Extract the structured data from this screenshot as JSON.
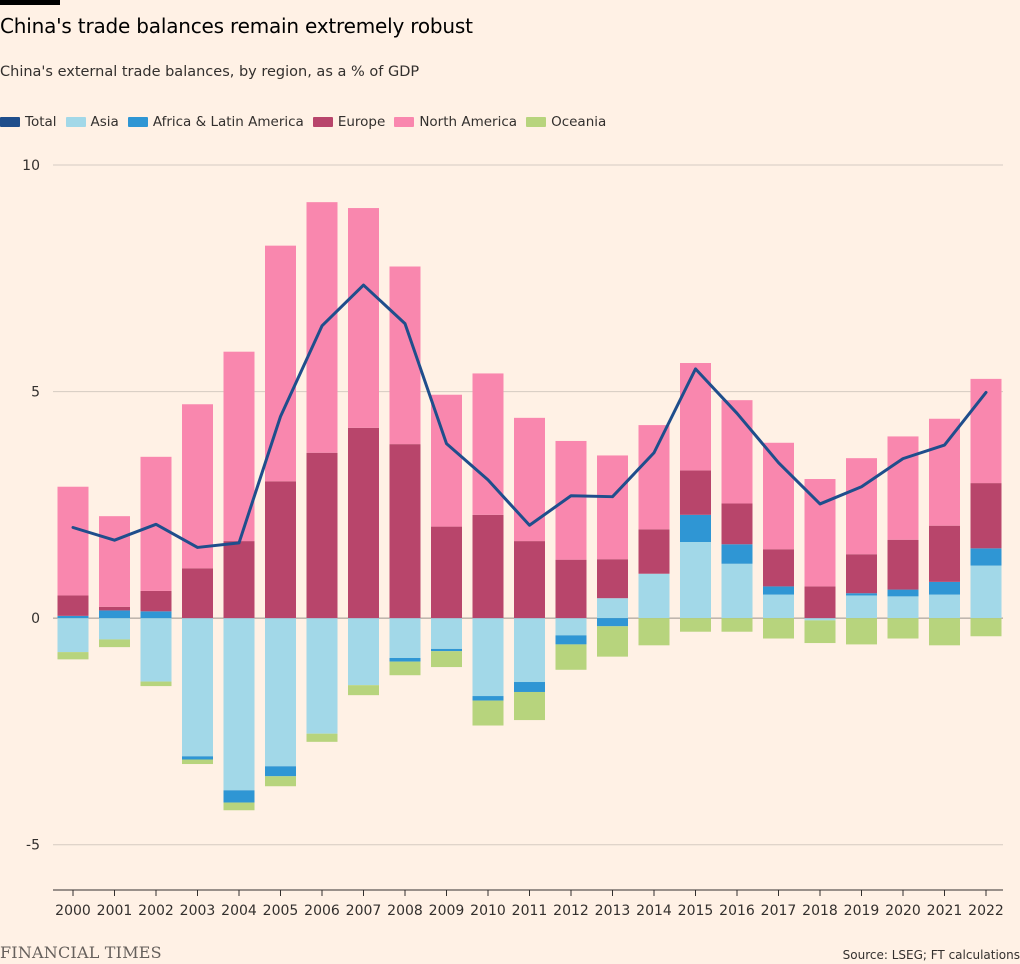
{
  "title": "China's trade balances remain extremely robust",
  "subtitle": "China's external trade balances, by region, as a % of GDP",
  "footer": {
    "logo": "FINANCIAL TIMES",
    "source": "Source: LSEG; FT calculations"
  },
  "colors": {
    "Total": "#1f4e8c",
    "Asia": "#a2d8e8",
    "Africa & Latin America": "#2f96d4",
    "Europe": "#b8456b",
    "North America": "#f987ae",
    "Oceania": "#b7d47d"
  },
  "chart_data": {
    "type": "bar",
    "stacked": true,
    "categories": [
      "2000",
      "2001",
      "2002",
      "2003",
      "2004",
      "2005",
      "2006",
      "2007",
      "2008",
      "2009",
      "2010",
      "2011",
      "2012",
      "2013",
      "2014",
      "2015",
      "2016",
      "2017",
      "2018",
      "2019",
      "2020",
      "2021",
      "2022"
    ],
    "ylim": [
      -6,
      10
    ],
    "yticks": [
      10,
      5,
      0,
      -5
    ],
    "ytick_labels": [
      "10",
      "5",
      "0",
      "-5"
    ],
    "legend": [
      "Total",
      "Asia",
      "Africa & Latin America",
      "Europe",
      "North America",
      "Oceania"
    ],
    "legend_position": "top-left",
    "grid": true,
    "series": [
      {
        "name": "Asia",
        "values": [
          -0.75,
          -0.47,
          -1.4,
          -3.05,
          -3.8,
          -3.27,
          -2.55,
          -1.48,
          -0.88,
          -0.68,
          -1.72,
          -1.41,
          -0.38,
          0.44,
          0.98,
          1.68,
          1.2,
          0.52,
          -0.05,
          0.5,
          0.48,
          0.52,
          1.16
        ]
      },
      {
        "name": "Africa & Latin America",
        "values": [
          0.05,
          0.17,
          0.15,
          -0.07,
          -0.27,
          -0.22,
          0,
          0,
          -0.08,
          -0.05,
          -0.1,
          -0.22,
          -0.2,
          -0.18,
          0,
          0.6,
          0.43,
          0.18,
          0,
          0.05,
          0.15,
          0.28,
          0.38
        ]
      },
      {
        "name": "Europe",
        "values": [
          0.45,
          0.08,
          0.45,
          1.1,
          1.7,
          3.02,
          3.65,
          4.2,
          3.84,
          2.02,
          2.28,
          1.7,
          1.29,
          0.86,
          0.98,
          0.98,
          0.9,
          0.82,
          0.7,
          0.86,
          1.1,
          1.24,
          1.44
        ]
      },
      {
        "name": "North America",
        "values": [
          2.4,
          2.0,
          2.96,
          3.62,
          4.18,
          5.2,
          5.53,
          4.85,
          3.92,
          2.91,
          3.12,
          2.72,
          2.62,
          2.29,
          2.3,
          2.37,
          2.28,
          2.35,
          2.37,
          2.12,
          2.28,
          2.36,
          2.3
        ]
      },
      {
        "name": "Oceania",
        "values": [
          -0.16,
          -0.17,
          -0.1,
          -0.1,
          -0.17,
          -0.22,
          -0.18,
          -0.22,
          -0.3,
          -0.35,
          -0.55,
          -0.62,
          -0.56,
          -0.67,
          -0.6,
          -0.3,
          -0.3,
          -0.45,
          -0.5,
          -0.58,
          -0.45,
          -0.6,
          -0.4
        ]
      },
      {
        "name": "Total",
        "type": "line",
        "values": [
          2.0,
          1.72,
          2.07,
          1.56,
          1.66,
          4.45,
          6.45,
          7.35,
          6.5,
          3.85,
          3.05,
          2.05,
          2.7,
          2.68,
          3.65,
          5.5,
          4.52,
          3.43,
          2.52,
          2.9,
          3.52,
          3.82,
          4.98
        ]
      }
    ]
  }
}
